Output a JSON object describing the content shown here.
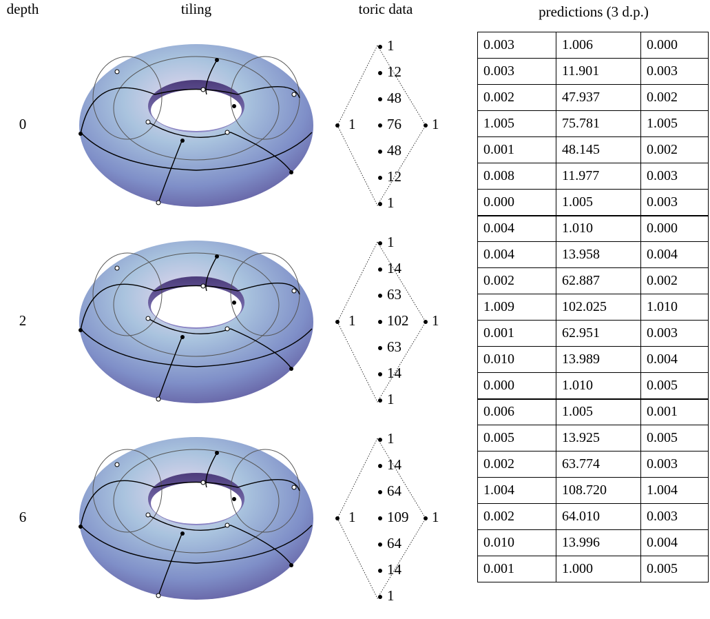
{
  "headers": {
    "depth": "depth",
    "tiling": "tiling",
    "toric": "toric data",
    "predictions": "predictions (3 d.p.)"
  },
  "rows": [
    {
      "depth": "0",
      "toric": {
        "left": "1",
        "right": "1",
        "column": [
          "1",
          "12",
          "48",
          "76",
          "48",
          "12",
          "1"
        ]
      },
      "predictions": [
        [
          "0.003",
          "1.006",
          "0.000"
        ],
        [
          "0.003",
          "11.901",
          "0.003"
        ],
        [
          "0.002",
          "47.937",
          "0.002"
        ],
        [
          "1.005",
          "75.781",
          "1.005"
        ],
        [
          "0.001",
          "48.145",
          "0.002"
        ],
        [
          "0.008",
          "11.977",
          "0.003"
        ],
        [
          "0.000",
          "1.005",
          "0.003"
        ]
      ]
    },
    {
      "depth": "2",
      "toric": {
        "left": "1",
        "right": "1",
        "column": [
          "1",
          "14",
          "63",
          "102",
          "63",
          "14",
          "1"
        ]
      },
      "predictions": [
        [
          "0.004",
          "1.010",
          "0.000"
        ],
        [
          "0.004",
          "13.958",
          "0.004"
        ],
        [
          "0.002",
          "62.887",
          "0.002"
        ],
        [
          "1.009",
          "102.025",
          "1.010"
        ],
        [
          "0.001",
          "62.951",
          "0.003"
        ],
        [
          "0.010",
          "13.989",
          "0.004"
        ],
        [
          "0.000",
          "1.010",
          "0.005"
        ]
      ]
    },
    {
      "depth": "6",
      "toric": {
        "left": "1",
        "right": "1",
        "column": [
          "1",
          "14",
          "64",
          "109",
          "64",
          "14",
          "1"
        ]
      },
      "predictions": [
        [
          "0.006",
          "1.005",
          "0.001"
        ],
        [
          "0.005",
          "13.925",
          "0.005"
        ],
        [
          "0.002",
          "63.774",
          "0.003"
        ],
        [
          "1.004",
          "108.720",
          "1.004"
        ],
        [
          "0.002",
          "64.010",
          "0.003"
        ],
        [
          "0.010",
          "13.996",
          "0.004"
        ],
        [
          "0.001",
          "1.000",
          "0.005"
        ]
      ]
    }
  ]
}
